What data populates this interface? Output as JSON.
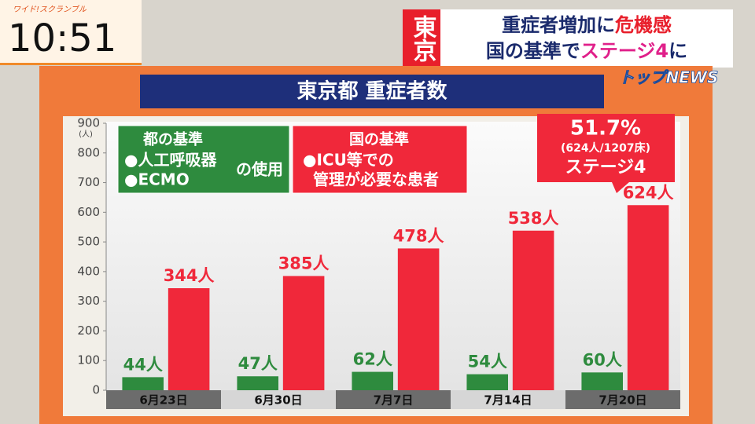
{
  "program": "ワイド!スクランブル",
  "clock": "10:51",
  "region": "東京",
  "headline": [
    [
      "重症者増加に",
      "危機感"
    ],
    [
      "国の基準で",
      "ステージ4",
      "に"
    ]
  ],
  "section": "トップNEWS",
  "chart_data": {
    "type": "bar",
    "title": "東京都 重症者数",
    "y_unit": "(人)",
    "categories": [
      "6月23日",
      "6月30日",
      "7月7日",
      "7月14日",
      "7月20日"
    ],
    "series": [
      {
        "name": "都の基準",
        "details": [
          "●人工呼吸器",
          "●ECMO",
          "の使用"
        ],
        "color": "#2e8b3e",
        "values": [
          44,
          47,
          62,
          54,
          60
        ],
        "value_labels": [
          "44人",
          "47人",
          "62人",
          "54人",
          "60人"
        ]
      },
      {
        "name": "国の基準",
        "details": [
          "●ICU等での",
          "管理が必要な患者"
        ],
        "color": "#f0283a",
        "values": [
          344,
          385,
          478,
          538,
          624
        ],
        "value_labels": [
          "344人",
          "385人",
          "478人",
          "538人",
          "624人"
        ]
      }
    ],
    "callout": [
      "51.7%",
      "(624人/1207床)",
      "ステージ4"
    ],
    "ylim": [
      0,
      900
    ],
    "yticks": [
      0,
      100,
      200,
      300,
      400,
      500,
      600,
      700,
      800,
      900
    ],
    "grid": false
  }
}
